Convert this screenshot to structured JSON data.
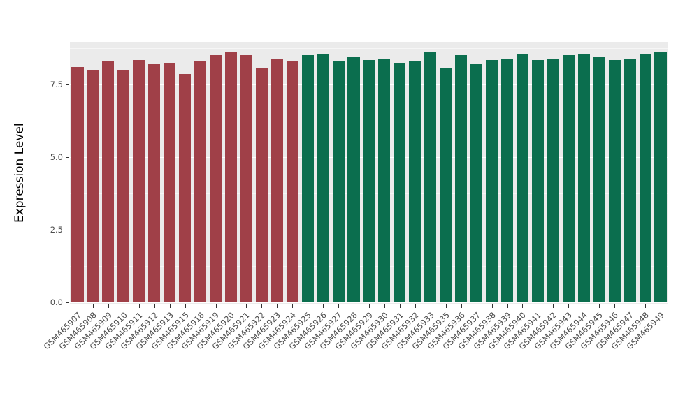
{
  "chart_data": {
    "type": "bar",
    "title": "",
    "xlabel": "",
    "ylabel": "Expression Level",
    "ylim": [
      0,
      8.97
    ],
    "grid": true,
    "legend": "none",
    "panel_background": "#EBEBEB",
    "figure_background": "#FFFFFF",
    "gridline_color": "#FFFFFF",
    "tick_color": "#333333",
    "tick_label_color": "#4D4D4D",
    "axis_title_color": "#000000",
    "yticks": {
      "major": [
        0.0,
        2.5,
        5.0,
        7.5
      ],
      "labels": [
        "0.0",
        "2.5",
        "5.0",
        "7.5"
      ],
      "minor": [
        1.25,
        3.75,
        6.25,
        8.75
      ]
    },
    "group_colors": {
      "red": "#A04048",
      "green": "#0B6E4E"
    },
    "categories": [
      "GSM465907",
      "GSM465908",
      "GSM465909",
      "GSM465910",
      "GSM465911",
      "GSM465912",
      "GSM465913",
      "GSM465915",
      "GSM465918",
      "GSM465919",
      "GSM465920",
      "GSM465921",
      "GSM465922",
      "GSM465923",
      "GSM465924",
      "GSM465925",
      "GSM465926",
      "GSM465927",
      "GSM465928",
      "GSM465929",
      "GSM465930",
      "GSM465931",
      "GSM465932",
      "GSM465933",
      "GSM465935",
      "GSM465936",
      "GSM465937",
      "GSM465938",
      "GSM465939",
      "GSM465940",
      "GSM465941",
      "GSM465942",
      "GSM465943",
      "GSM465944",
      "GSM465945",
      "GSM465946",
      "GSM465947",
      "GSM465948",
      "GSM465949"
    ],
    "values": [
      8.1,
      8.0,
      8.3,
      8.0,
      8.35,
      8.2,
      8.25,
      7.85,
      8.3,
      8.5,
      8.6,
      8.5,
      8.05,
      8.4,
      8.3,
      8.5,
      8.55,
      8.3,
      8.45,
      8.35,
      8.4,
      8.25,
      8.3,
      8.6,
      8.05,
      8.5,
      8.2,
      8.35,
      8.4,
      8.55,
      8.35,
      8.4,
      8.5,
      8.55,
      8.45,
      8.35,
      8.4,
      8.55,
      8.6
    ],
    "groups": [
      "red",
      "red",
      "red",
      "red",
      "red",
      "red",
      "red",
      "red",
      "red",
      "red",
      "red",
      "red",
      "red",
      "red",
      "red",
      "green",
      "green",
      "green",
      "green",
      "green",
      "green",
      "green",
      "green",
      "green",
      "green",
      "green",
      "green",
      "green",
      "green",
      "green",
      "green",
      "green",
      "green",
      "green",
      "green",
      "green",
      "green",
      "green",
      "green"
    ]
  }
}
